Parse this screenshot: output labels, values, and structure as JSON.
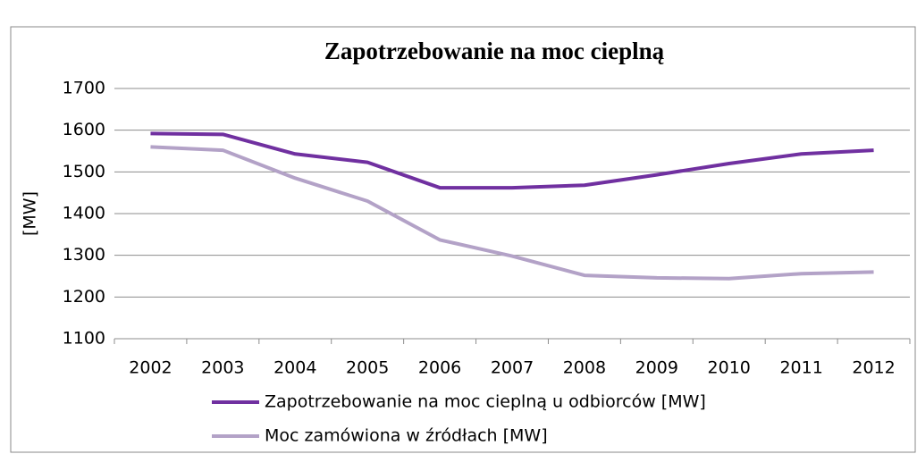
{
  "chart_data": {
    "type": "line",
    "title": "Zapotrzebowanie na moc cieplną",
    "ylabel": "[MW]",
    "categories": [
      "2002",
      "2003",
      "2004",
      "2005",
      "2006",
      "2007",
      "2008",
      "2009",
      "2010",
      "2011",
      "2012"
    ],
    "series": [
      {
        "name": "Zapotrzebowanie na moc cieplną u odbiorców [MW]",
        "color": "#7030a0",
        "values": [
          1592,
          1590,
          1543,
          1523,
          1462,
          1462,
          1468,
          1493,
          1520,
          1543,
          1552
        ]
      },
      {
        "name": "Moc zamówiona w źródłach [MW]",
        "color": "#b3a2c7",
        "values": [
          1560,
          1552,
          1485,
          1430,
          1337,
          1298,
          1252,
          1246,
          1244,
          1256,
          1260
        ]
      }
    ],
    "ylim": [
      1100,
      1700
    ],
    "yticks": [
      1100,
      1200,
      1300,
      1400,
      1500,
      1600,
      1700
    ],
    "grid": true,
    "legend": "bottom"
  }
}
